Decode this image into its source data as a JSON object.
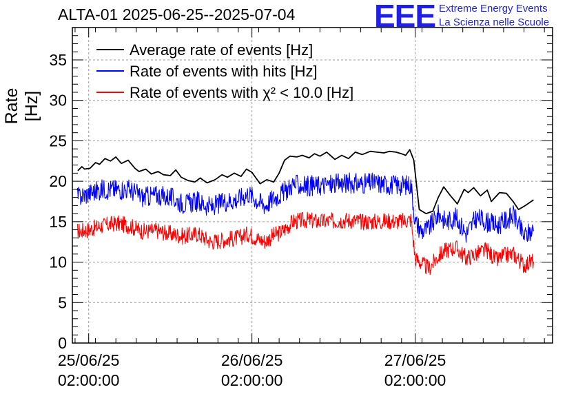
{
  "header": {
    "title": "ALTA-01 2025-06-25--2025-07-04",
    "logo_text": "EEE",
    "logo_line1": "Extreme Energy Events",
    "logo_line2": "La Scienza nelle Scuole"
  },
  "colors": {
    "black": "#000000",
    "blue": "#0000ff",
    "red": "#ff0000",
    "logo": "#1f1fe6"
  },
  "chart_data": {
    "type": "line",
    "title": "ALTA-01 2025-06-25--2025-07-04",
    "xlabel": "",
    "ylabel": "Rate [Hz]",
    "ylim": [
      0,
      39
    ],
    "xlim_hours": [
      -2.4,
      68.2
    ],
    "grid": true,
    "legend_position": "top-left",
    "yticks": [
      0,
      5,
      10,
      15,
      20,
      25,
      30,
      35
    ],
    "yticklabels": [
      "0",
      "5",
      "10",
      "15",
      "20",
      "25",
      "30",
      "35"
    ],
    "xticks_hours": [
      0,
      24,
      48
    ],
    "xticklabels_date": [
      "25/06/25",
      "26/06/25",
      "27/06/25"
    ],
    "xticklabels_time": [
      "02:00:00",
      "02:00:00",
      "02:00:00"
    ],
    "series": [
      {
        "name": "Average rate of events [Hz]",
        "color": "#000000",
        "noise": 0,
        "x": [
          -1.6,
          -1.0,
          -0.6,
          0.2,
          1.0,
          1.6,
          2.4,
          3.2,
          4.0,
          4.8,
          5.8,
          6.8,
          7.4,
          8.4,
          9.2,
          10.2,
          11.0,
          12.0,
          12.8,
          13.6,
          14.6,
          15.6,
          16.4,
          17.4,
          18.6,
          19.6,
          20.4,
          21.4,
          22.4,
          23.2,
          24.0,
          25.2,
          26.2,
          27.2,
          28.0,
          28.8,
          29.6,
          30.6,
          31.4,
          32.4,
          33.2,
          34.0,
          35.0,
          36.2,
          37.2,
          38.2,
          39.2,
          40.2,
          41.4,
          42.4,
          43.4,
          44.2,
          45.2,
          46.0,
          46.6,
          47.2,
          47.8,
          48.6,
          49.6,
          50.6,
          51.4,
          52.2,
          53.2,
          54.2,
          55.2,
          55.8,
          56.6,
          57.6,
          58.6,
          59.2,
          60.4,
          61.4,
          62.4,
          63.2,
          64.2,
          65.4
        ],
        "values": [
          21.3,
          21.8,
          21.5,
          21.6,
          22.3,
          22.1,
          22.8,
          22.5,
          23.0,
          22.2,
          22.6,
          21.6,
          21.2,
          21.5,
          20.9,
          21.2,
          20.8,
          20.7,
          21.4,
          20.5,
          20.1,
          19.9,
          20.4,
          19.8,
          20.2,
          20.8,
          20.5,
          21.0,
          20.6,
          21.5,
          21.1,
          19.7,
          20.2,
          19.9,
          21.0,
          22.6,
          23.1,
          23.0,
          23.2,
          22.9,
          23.4,
          23.1,
          23.6,
          22.7,
          23.2,
          22.8,
          23.6,
          23.3,
          23.7,
          23.6,
          23.5,
          23.7,
          23.6,
          23.4,
          23.2,
          23.9,
          22.6,
          16.5,
          16.0,
          16.3,
          18.0,
          19.3,
          18.2,
          17.2,
          19.0,
          18.6,
          19.2,
          18.2,
          18.9,
          17.5,
          18.6,
          18.5,
          17.5,
          16.5,
          17.0,
          17.7
        ]
      },
      {
        "name": "Rate of events with hits [Hz]",
        "color": "#0000ff",
        "noise": 1.6,
        "x": [
          -1.7,
          0.0,
          2.0,
          4.0,
          6.0,
          8.0,
          10.0,
          12.0,
          14.0,
          16.0,
          18.0,
          20.0,
          22.0,
          23.5,
          25.0,
          26.0,
          27.0,
          28.5,
          30.0,
          32.0,
          34.0,
          36.0,
          38.0,
          40.0,
          42.0,
          44.0,
          46.0,
          47.4,
          48.0,
          49.0,
          50.0,
          51.5,
          52.5,
          54.0,
          55.5,
          57.0,
          58.5,
          60.0,
          61.0,
          62.5,
          64.0,
          65.4
        ],
        "values": [
          18.0,
          18.5,
          19.0,
          19.0,
          19.0,
          18.0,
          18.3,
          18.0,
          17.2,
          17.5,
          16.8,
          17.5,
          17.8,
          18.5,
          17.5,
          17.0,
          17.8,
          18.5,
          19.6,
          19.4,
          19.5,
          19.6,
          19.8,
          19.7,
          19.8,
          19.6,
          19.5,
          19.6,
          15.0,
          13.8,
          14.2,
          16.0,
          15.0,
          15.5,
          13.5,
          15.5,
          15.0,
          14.5,
          15.0,
          15.8,
          13.2,
          14.0
        ]
      },
      {
        "name": "Rate of events with χ² < 10.0 [Hz]",
        "color": "#ff0000",
        "noise": 1.3,
        "x": [
          -1.7,
          0.0,
          2.0,
          4.0,
          6.0,
          8.0,
          10.0,
          12.0,
          14.0,
          16.0,
          18.0,
          20.0,
          22.0,
          23.5,
          25.0,
          26.0,
          27.0,
          28.5,
          30.0,
          32.0,
          34.0,
          36.0,
          38.0,
          40.0,
          42.0,
          44.0,
          46.0,
          47.4,
          48.0,
          49.0,
          50.0,
          51.5,
          52.5,
          54.0,
          55.5,
          57.0,
          58.5,
          60.0,
          61.0,
          62.5,
          64.0,
          65.4
        ],
        "values": [
          13.8,
          14.0,
          14.5,
          14.8,
          14.5,
          13.8,
          13.9,
          13.5,
          13.2,
          13.5,
          12.5,
          12.8,
          13.0,
          13.5,
          12.8,
          12.6,
          13.2,
          13.8,
          15.0,
          15.2,
          15.0,
          15.1,
          15.2,
          15.0,
          15.0,
          15.1,
          15.0,
          15.3,
          10.5,
          9.8,
          9.2,
          10.8,
          11.5,
          11.8,
          10.5,
          11.0,
          11.5,
          10.2,
          10.8,
          11.0,
          9.6,
          10.2
        ]
      }
    ]
  }
}
